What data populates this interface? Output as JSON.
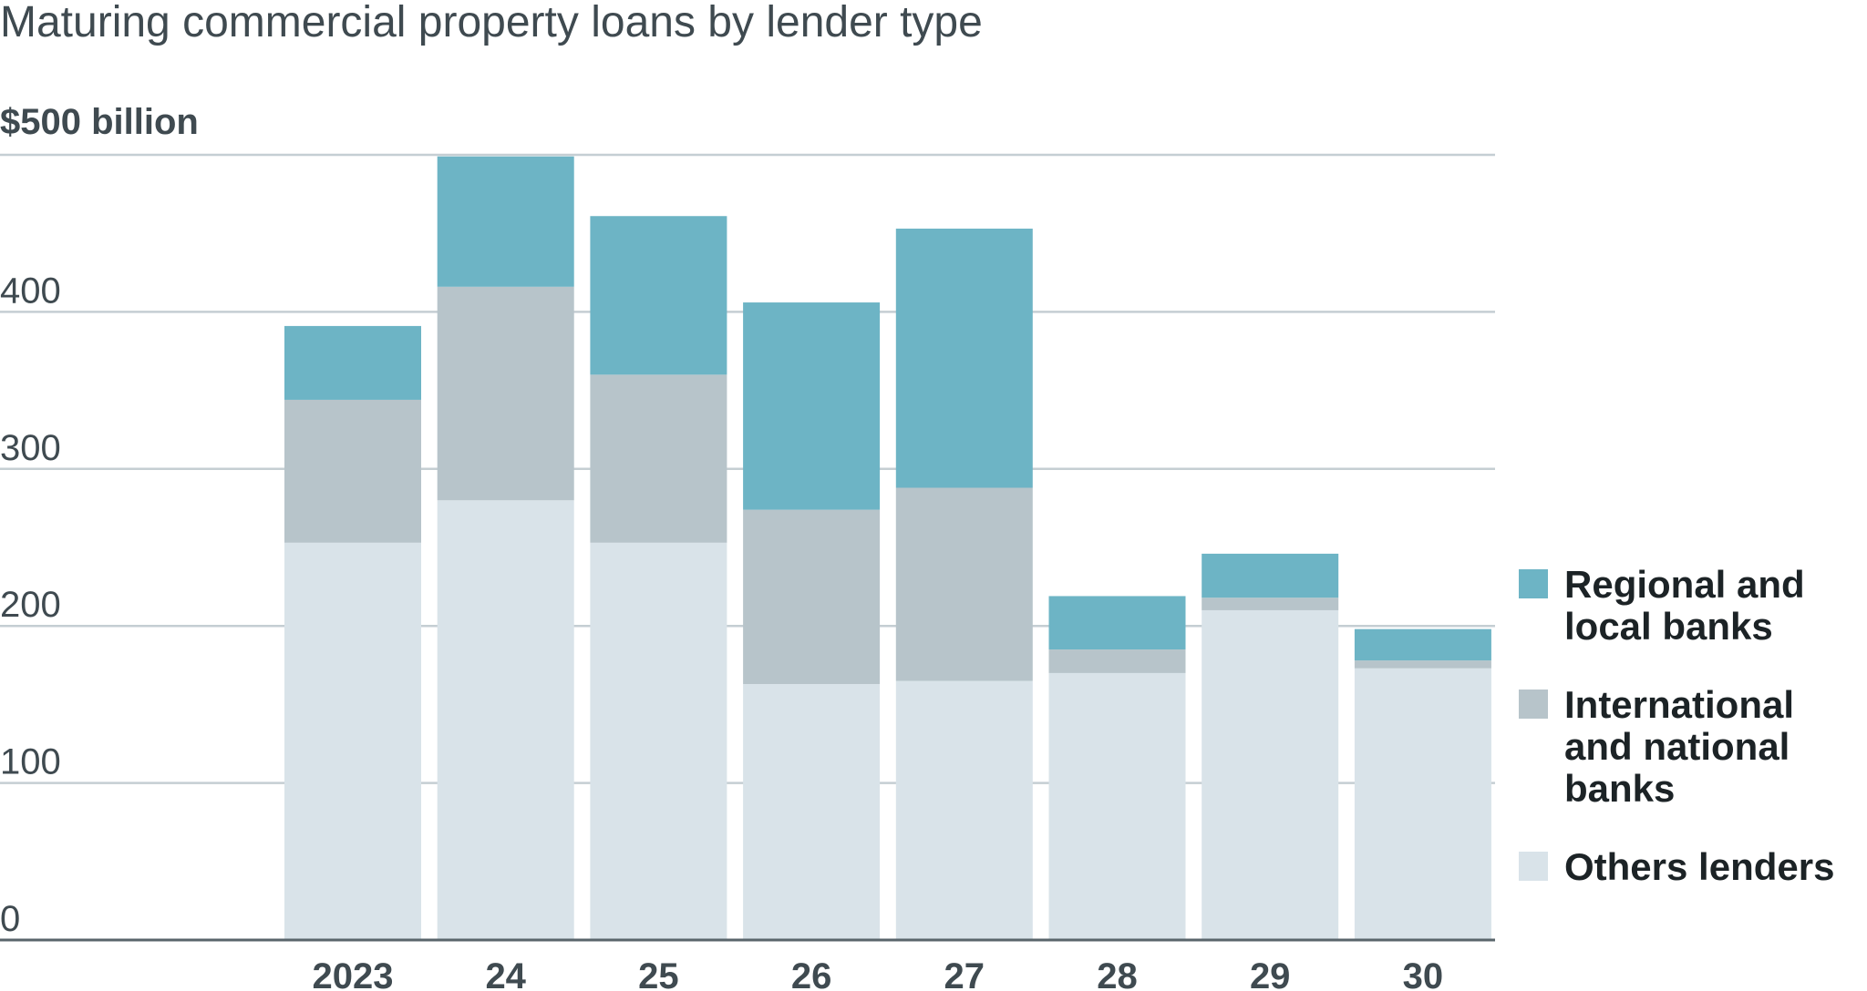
{
  "chart_data": {
    "type": "bar",
    "stacked": true,
    "title": "Maturing commercial property loans by lender type",
    "ylabel": "$500 billion",
    "xlabel": "",
    "categories": [
      "2023",
      "24",
      "25",
      "26",
      "27",
      "28",
      "29",
      "30"
    ],
    "ylim": [
      0,
      500
    ],
    "yticks": [
      0,
      100,
      200,
      300,
      400
    ],
    "ytick_labels": [
      "0",
      "100",
      "200",
      "300",
      "400"
    ],
    "grid": true,
    "legend_position": "right",
    "series": [
      {
        "name": "Others lenders",
        "color": "#d9e3e9",
        "values": [
          253,
          280,
          253,
          163,
          165,
          170,
          210,
          173
        ]
      },
      {
        "name": "International and national banks",
        "color": "#b7c4ca",
        "values": [
          91,
          136,
          107,
          111,
          123,
          15,
          8,
          5
        ]
      },
      {
        "name": "Regional and local banks",
        "color": "#6db4c5",
        "values": [
          47,
          83,
          101,
          132,
          165,
          34,
          28,
          20
        ]
      }
    ],
    "legend": [
      {
        "lines": [
          "Regional and",
          "local banks"
        ],
        "color": "#6db4c5"
      },
      {
        "lines": [
          "International",
          "and national",
          "banks"
        ],
        "color": "#b7c4ca"
      },
      {
        "lines": [
          "Others lenders"
        ],
        "color": "#d9e3e9"
      }
    ],
    "colors": {
      "text": "#3f4a50",
      "legend_text": "#1c2326",
      "grid": "#c5ced3",
      "axis": "#59656b"
    }
  }
}
